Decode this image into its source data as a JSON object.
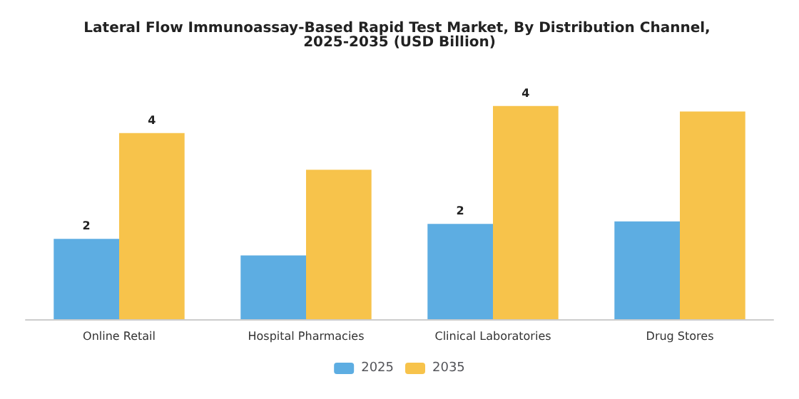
{
  "chart_data": {
    "type": "bar",
    "title": "Lateral Flow Immunoassay-Based Rapid Test Market, By Distribution Channel, 2025-2035 (USD Billion)",
    "categories": [
      "Online Retail",
      "Hospital Pharmacies",
      "Clinical Laboratories",
      "Drug Stores"
    ],
    "series": [
      {
        "name": "2025",
        "color": "#5dade2",
        "values": [
          1.6,
          1.27,
          1.9,
          1.95
        ],
        "value_labels": [
          "2",
          null,
          "2",
          null
        ]
      },
      {
        "name": "2035",
        "color": "#f7c34b",
        "values": [
          3.71,
          2.98,
          4.25,
          4.14
        ],
        "value_labels": [
          "4",
          null,
          "4",
          null
        ]
      }
    ],
    "tick_labels": false,
    "legend": "bottom",
    "grid": false
  }
}
